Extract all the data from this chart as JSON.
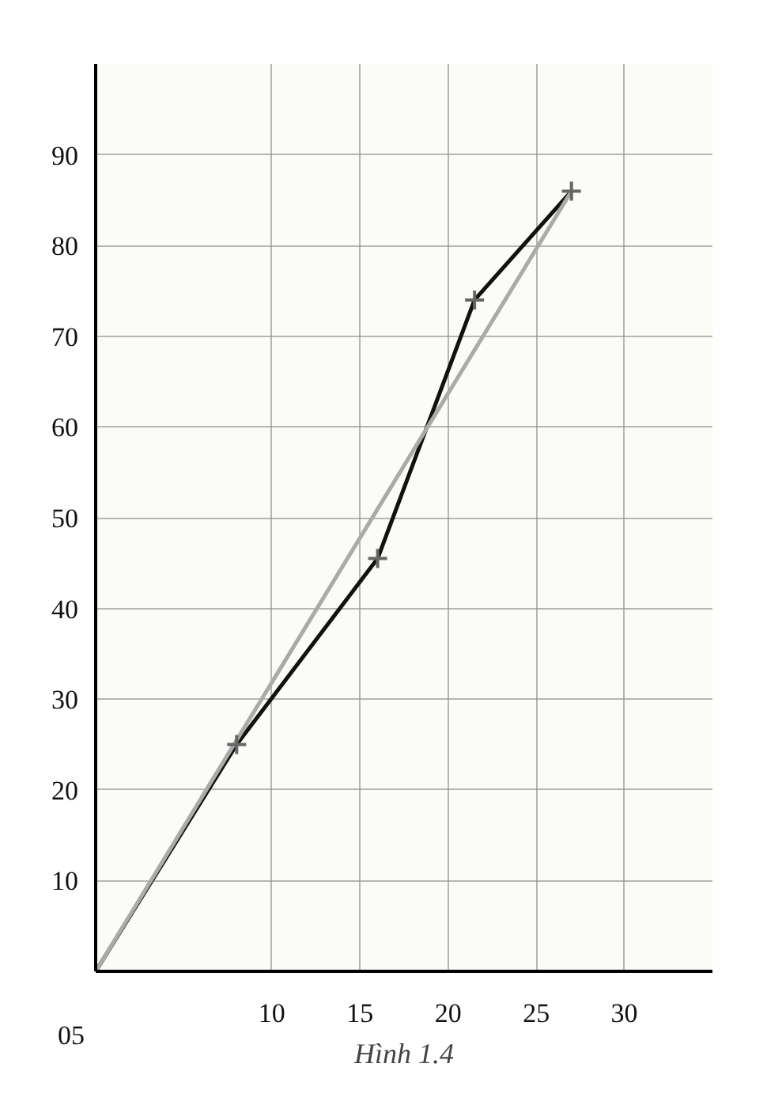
{
  "chart_data": {
    "type": "line",
    "title": "Hình 1.4",
    "xlim": [
      0,
      35
    ],
    "ylim": [
      0,
      100
    ],
    "xticks": [
      {
        "value": 0,
        "label": null
      },
      10,
      15,
      20,
      25,
      30
    ],
    "annotations": [
      "05"
    ],
    "yticks": [
      {
        "value": 0,
        "label": null
      },
      10,
      20,
      30,
      40,
      50,
      60,
      70,
      80,
      90
    ],
    "grid": true,
    "series": [
      {
        "color": "#111111",
        "marker": "none",
        "x": [
          0,
          8,
          16,
          21.5,
          27
        ],
        "values": [
          0,
          25,
          45.5,
          74,
          86
        ]
      },
      {
        "color": "#aaaaaa",
        "marker": "none",
        "x": [
          0,
          27
        ],
        "values": [
          0,
          86
        ]
      },
      {
        "type": "scatter",
        "color": "#666666",
        "marker": "cross",
        "x": [
          8,
          16,
          21.5,
          27
        ],
        "values": [
          25,
          45.5,
          74,
          86
        ]
      }
    ]
  }
}
